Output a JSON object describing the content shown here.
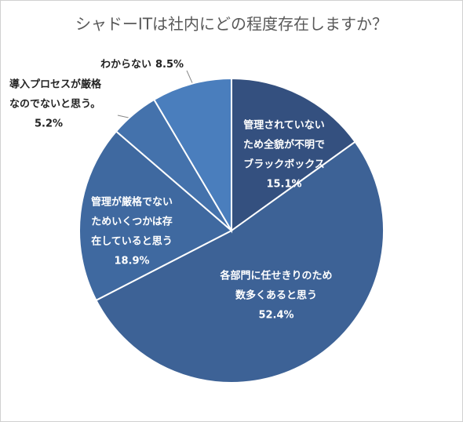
{
  "chart_data": {
    "type": "pie",
    "title": "シャドーITは社内にどの程度存在しますか？",
    "categories": [
      [
        "管理されていない",
        "ため全貌が不明で",
        "ブラックボックス"
      ],
      [
        "各部門に任せきりのため",
        "数多くあると思う"
      ],
      [
        "管理が厳格でない",
        "ためいくつかは存",
        "在していると思う"
      ],
      [
        "導入プロセスが厳格",
        "なのでないと思う。"
      ],
      [
        "わからない"
      ]
    ],
    "values": [
      15.1,
      52.4,
      18.9,
      5.2,
      8.5
    ],
    "value_labels": [
      "15.1%",
      "52.4%",
      "18.9%",
      "5.2%",
      "8.5%"
    ],
    "colors": [
      "#34507f",
      "#3d6296",
      "#3f69a0",
      "#4472ac",
      "#4a7ebd"
    ]
  }
}
